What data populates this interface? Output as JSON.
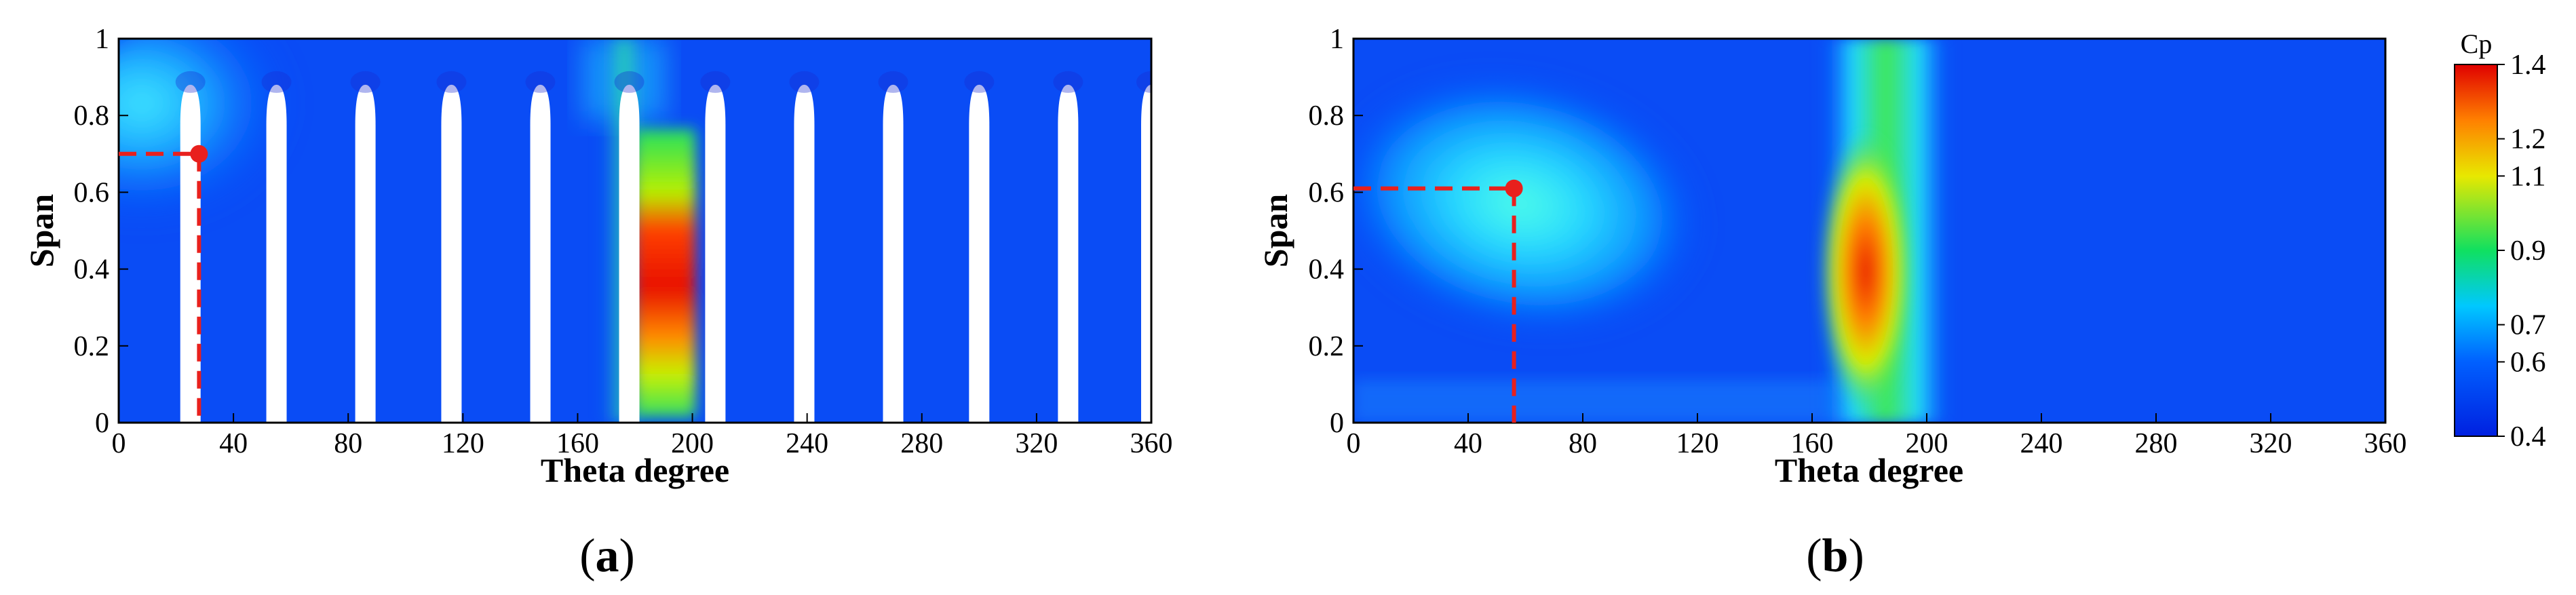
{
  "chart_data": [
    {
      "panel": "(a)",
      "panel_letter": "a",
      "type": "heatmap",
      "xlabel": "Theta degree",
      "ylabel": "Span",
      "xlim": [
        0,
        360
      ],
      "ylim": [
        0,
        1
      ],
      "xticks": [
        0,
        40,
        80,
        120,
        160,
        200,
        240,
        280,
        320,
        360
      ],
      "yticks": [
        0,
        0.2,
        0.4,
        0.6,
        0.8,
        1
      ],
      "marker_point": {
        "x": 28,
        "y": 0.7
      },
      "blades_theta": [
        25,
        55,
        86,
        116,
        147,
        178,
        208,
        239,
        270,
        300,
        331,
        360
      ],
      "blade_tip_span": 0.88,
      "hot_zone_theta": [
        180,
        200
      ],
      "marker_color": "#e8201d"
    },
    {
      "panel": "(b)",
      "panel_letter": "b",
      "type": "heatmap",
      "xlabel": "Theta degree",
      "ylabel": "Span",
      "xlim": [
        0,
        360
      ],
      "ylim": [
        0,
        1
      ],
      "xticks": [
        0,
        40,
        80,
        120,
        160,
        200,
        240,
        280,
        320,
        360
      ],
      "yticks": [
        0,
        0.2,
        0.4,
        0.6,
        0.8,
        1
      ],
      "marker_point": {
        "x": 56,
        "y": 0.61
      },
      "hot_zone_theta": [
        170,
        205
      ],
      "marker_color": "#e8201d"
    }
  ],
  "colorbar": {
    "title": "Cp",
    "ticks": [
      1.4,
      1.2,
      1.1,
      0.9,
      0.7,
      0.6,
      0.4
    ],
    "range": [
      0.4,
      1.4
    ],
    "colors": [
      "#0020e0",
      "#0060ff",
      "#00c8ff",
      "#10e060",
      "#e8e800",
      "#ff8000",
      "#e00000"
    ]
  }
}
